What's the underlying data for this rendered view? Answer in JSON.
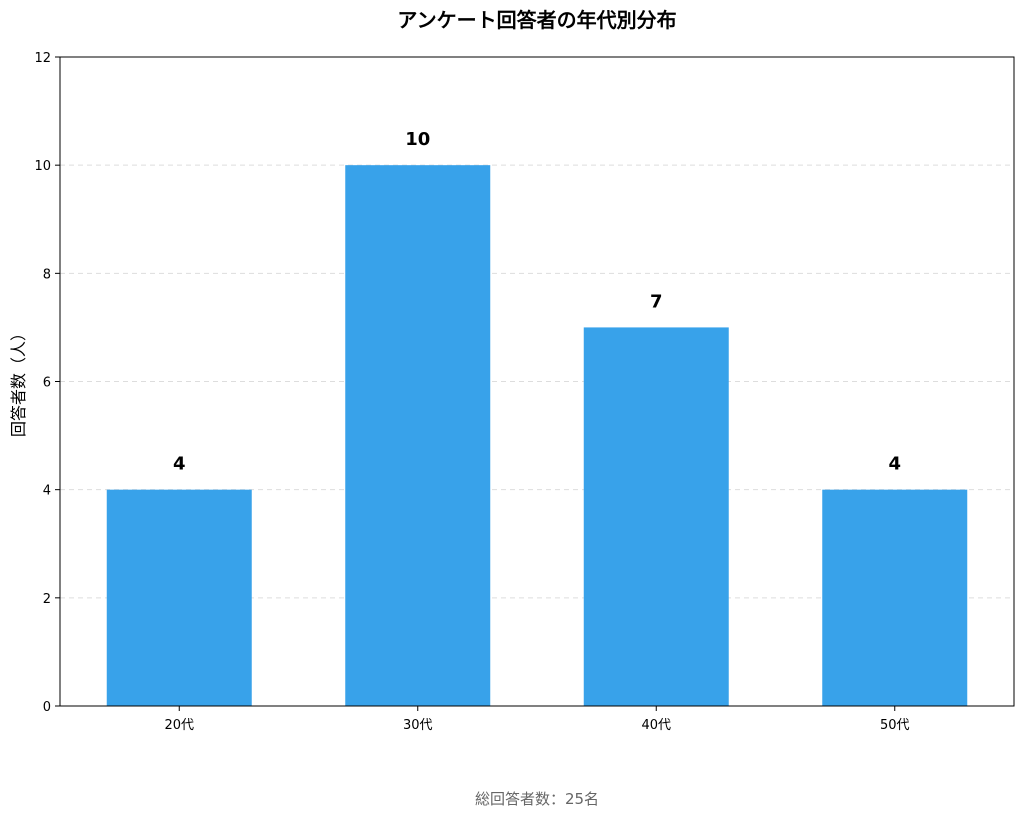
{
  "chart_data": {
    "type": "bar",
    "title": "アンケート回答者の年代別分布",
    "xlabel": "",
    "ylabel": "回答者数（人）",
    "categories": [
      "20代",
      "30代",
      "40代",
      "50代"
    ],
    "values": [
      4,
      10,
      7,
      4
    ],
    "data_labels": [
      "4",
      "10",
      "7",
      "4"
    ],
    "ylim": [
      0,
      12
    ],
    "yticks": [
      "0",
      "2",
      "4",
      "6",
      "8",
      "10",
      "12"
    ],
    "grid": "y-dashed",
    "bar_color": "#38a2ea",
    "grid_color": "#dddddd",
    "footer": "総回答者数：25名"
  }
}
